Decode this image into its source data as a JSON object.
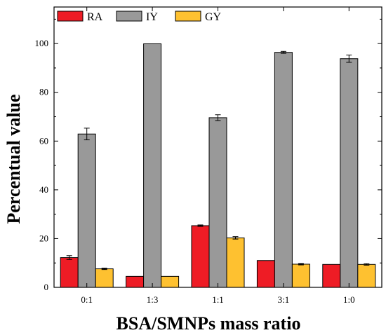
{
  "chart_data": {
    "type": "bar",
    "categories": [
      "0:1",
      "1:3",
      "1:1",
      "3:1",
      "1:0"
    ],
    "series": [
      {
        "name": "RA",
        "color": "#ee1c25",
        "values": [
          12.2,
          4.5,
          25.3,
          11.0,
          9.4
        ],
        "errors": [
          0.8,
          0,
          0.3,
          0,
          0
        ]
      },
      {
        "name": "IY",
        "color": "#999999",
        "values": [
          62.9,
          99.9,
          69.6,
          96.4,
          93.8
        ],
        "errors": [
          2.4,
          0,
          1.2,
          0.4,
          1.5
        ]
      },
      {
        "name": "GY",
        "color": "#fec130",
        "values": [
          7.6,
          4.5,
          20.3,
          9.5,
          9.4
        ],
        "errors": [
          0.3,
          0,
          0.5,
          0.3,
          0.3
        ]
      }
    ],
    "yticks": [
      0,
      20,
      40,
      60,
      80,
      100
    ],
    "ylim": [
      0,
      115
    ],
    "xlabel": "BSA/SMNPs mass ratio",
    "ylabel": "Percentual value",
    "legend_position": "top-left",
    "grid": false
  }
}
